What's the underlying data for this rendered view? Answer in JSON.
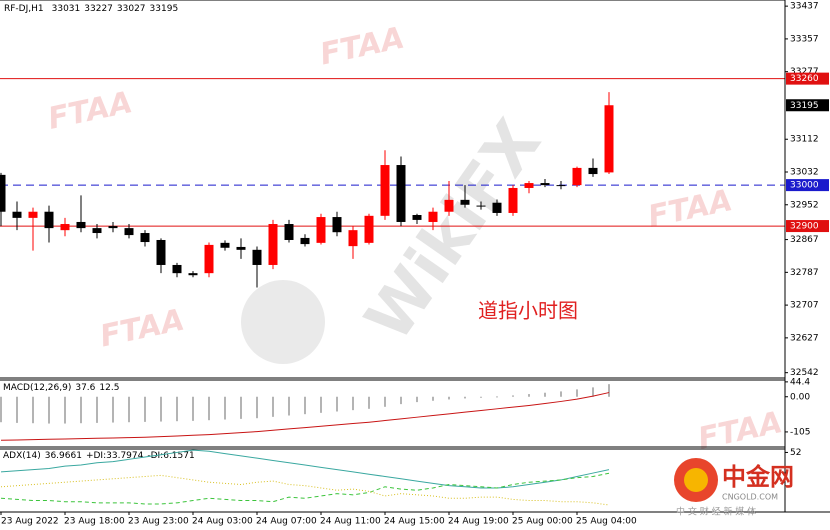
{
  "chart_data": [
    {
      "type": "candlestick",
      "symbol": "RF-DJ,H1",
      "categories": [
        "23 Aug 2022",
        null,
        null,
        null,
        "23 Aug 18:00",
        null,
        null,
        null,
        "23 Aug 23:00",
        null,
        null,
        null,
        "24 Aug 03:00",
        null,
        null,
        null,
        "24 Aug 07:00",
        null,
        null,
        null,
        "24 Aug 11:00",
        null,
        null,
        null,
        "24 Aug 15:00",
        null,
        null,
        null,
        "24 Aug 19:00",
        null,
        null,
        null,
        "25 Aug 00:00",
        null,
        null,
        null,
        "25 Aug 04:00",
        null,
        null
      ],
      "open": [
        33025,
        32935,
        32920,
        32935,
        32890,
        32910,
        32895,
        32900,
        32895,
        32883,
        32866,
        32805,
        32785,
        32785,
        32859,
        32849,
        32842,
        32805,
        32905,
        32871,
        32859,
        32922,
        32851,
        32859,
        32925,
        33049,
        32927,
        32910,
        32935,
        32964,
        32950,
        32957,
        32932,
        32993,
        33005,
        33000,
        33000,
        33042,
        33031
      ],
      "high": [
        33030,
        32960,
        32945,
        32950,
        32920,
        32975,
        32905,
        32910,
        32905,
        32890,
        32870,
        32810,
        32790,
        32860,
        32865,
        32870,
        32850,
        32915,
        32915,
        32880,
        32930,
        32935,
        32900,
        32930,
        33085,
        33070,
        32930,
        32945,
        33010,
        33000,
        32960,
        32965,
        33000,
        33010,
        33015,
        33010,
        33045,
        33065,
        33227
      ],
      "low": [
        32900,
        32890,
        32840,
        32860,
        32875,
        32885,
        32870,
        32885,
        32870,
        32850,
        32785,
        32775,
        32775,
        32775,
        32840,
        32820,
        32750,
        32795,
        32860,
        32850,
        32855,
        32875,
        32820,
        32855,
        32915,
        32900,
        32905,
        32890,
        32925,
        32945,
        32940,
        32925,
        32925,
        32980,
        32995,
        32990,
        32995,
        33020,
        33027
      ],
      "close": [
        32935,
        32920,
        32935,
        32895,
        32905,
        32895,
        32883,
        32895,
        32878,
        32861,
        32805,
        32785,
        32780,
        32854,
        32847,
        32842,
        32805,
        32905,
        32866,
        32856,
        32922,
        32885,
        32890,
        32925,
        33049,
        32910,
        32915,
        32935,
        32964,
        32952,
        32948,
        32932,
        32993,
        33005,
        33000,
        32998,
        33042,
        33027,
        33195
      ],
      "up_color": "#ff0000",
      "down_color": "#000000",
      "ylim": [
        32529,
        33452
      ],
      "yticks": [
        33437,
        33357,
        33277,
        33112,
        33032,
        32952,
        32867,
        32787,
        32707,
        32627,
        32542
      ],
      "levels": [
        {
          "value": 33260,
          "color": "#e01010",
          "style": "solid"
        },
        {
          "value": 33000,
          "color": "#1a1acc",
          "style": "dashed"
        },
        {
          "value": 32900,
          "color": "#e01010",
          "style": "solid"
        }
      ],
      "annotation": "道指小时图"
    },
    {
      "type": "macd",
      "title": "MACD(12,26,9)",
      "histogram": {
        "color": "#b4b4b4",
        "values": [
          -76,
          -78,
          -79,
          -80,
          -80,
          -79,
          -78,
          -77,
          -76,
          -75,
          -74,
          -73,
          -72,
          -70,
          -68,
          -66,
          -64,
          -60,
          -56,
          -52,
          -48,
          -44,
          -40,
          -36,
          -30,
          -22,
          -16,
          -12,
          -8,
          -5,
          -2,
          1,
          4,
          8,
          12,
          16,
          22,
          28,
          37.6
        ]
      },
      "signal": {
        "color": "#c81414",
        "values": [
          -130,
          -129,
          -128,
          -127,
          -126,
          -125,
          -124,
          -123,
          -122,
          -121,
          -119,
          -117,
          -115,
          -113,
          -110,
          -107,
          -104,
          -100,
          -96,
          -92,
          -88,
          -84,
          -80,
          -76,
          -71,
          -66,
          -61,
          -56,
          -51,
          -46,
          -41,
          -36,
          -31,
          -26,
          -20,
          -14,
          -7,
          2,
          12.5
        ]
      },
      "ylim": [
        -150,
        50
      ],
      "yticks": [
        44.4,
        {
          "value": 0,
          "label": "0.00"
        },
        -105
      ]
    },
    {
      "type": "line",
      "title": "ADX(14)",
      "series": [
        {
          "name": null,
          "color": "#3aa8a0",
          "style": "solid",
          "values": [
            35,
            36,
            37,
            38,
            40,
            41,
            43,
            44,
            46,
            48,
            50,
            52,
            54,
            53,
            51,
            49,
            47,
            45,
            43,
            41,
            39,
            37,
            35,
            33,
            31,
            29,
            27,
            25,
            23,
            22,
            21,
            21,
            22,
            24,
            26,
            28,
            31,
            34,
            36.9661
          ]
        },
        {
          "name": "+DI:",
          "color": "#3cc43c",
          "style": "dashed",
          "values": [
            12,
            11,
            10,
            10,
            9,
            9,
            8,
            8,
            8,
            7,
            7,
            8,
            10,
            12,
            11,
            10,
            10,
            9,
            13,
            12,
            14,
            16,
            15,
            17,
            22,
            20,
            19,
            21,
            24,
            23,
            22,
            21,
            24,
            26,
            27,
            28,
            30,
            31,
            33.7974
          ]
        },
        {
          "name": "-DI:",
          "color": "#d8c020",
          "style": "dotted",
          "values": [
            22,
            23,
            24,
            25,
            26,
            27,
            28,
            29,
            30,
            31,
            32,
            30,
            28,
            26,
            25,
            24,
            26,
            27,
            24,
            23,
            21,
            19,
            20,
            18,
            14,
            16,
            15,
            14,
            12,
            12,
            13,
            13,
            11,
            10,
            10,
            9,
            9,
            8,
            6.1571
          ]
        }
      ],
      "ylim": [
        0,
        55
      ],
      "yticks": [
        52
      ]
    }
  ],
  "watermarks": {
    "brand": "FTAA",
    "site": "WikiFX"
  },
  "logo": {
    "name": "中金网",
    "domain": "CNGOLD.COM",
    "slogan": "中 文 财 经 新 媒 体"
  }
}
